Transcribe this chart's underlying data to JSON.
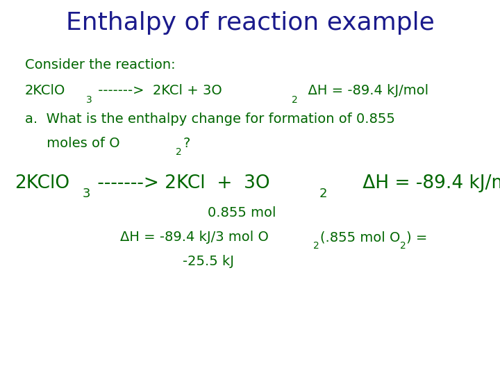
{
  "title": "Enthalpy of reaction example",
  "title_color": "#1a1a8c",
  "title_fontsize": 26,
  "body_color": "#006600",
  "background_color": "#ffffff",
  "body_fontsize": 14,
  "big_fontsize": 19,
  "sub_fontsize": 10,
  "big_sub_fontsize": 13
}
